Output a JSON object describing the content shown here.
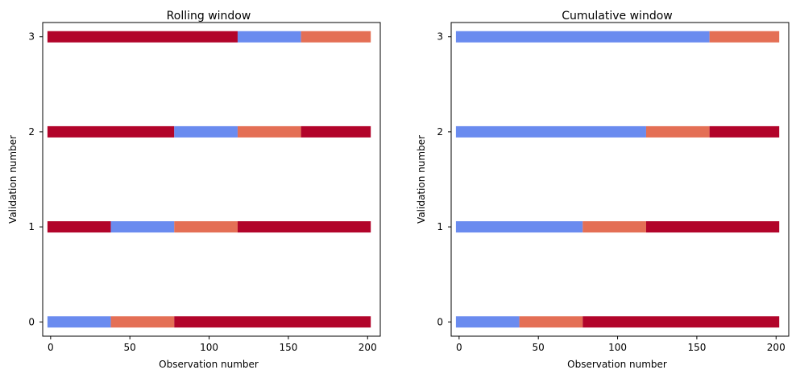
{
  "colors": {
    "train": "#6a8bef",
    "test": "#e46f55",
    "unused": "#b2042a"
  },
  "chart_data": [
    {
      "type": "bar",
      "orientation": "horizontal-segments",
      "title": "Rolling window",
      "xlabel": "Observation number",
      "ylabel": "Validation number",
      "xlim": [
        -5,
        208
      ],
      "ylim": [
        -0.15,
        3.15
      ],
      "xticks": [
        0,
        50,
        100,
        150,
        200
      ],
      "yticks": [
        0,
        1,
        2,
        3
      ],
      "rows": [
        {
          "y": 0,
          "segments": [
            {
              "start": -2,
              "end": 38,
              "kind": "train"
            },
            {
              "start": 38,
              "end": 78,
              "kind": "test"
            },
            {
              "start": 78,
              "end": 202,
              "kind": "unused"
            }
          ]
        },
        {
          "y": 1,
          "segments": [
            {
              "start": -2,
              "end": 38,
              "kind": "unused"
            },
            {
              "start": 38,
              "end": 78,
              "kind": "train"
            },
            {
              "start": 78,
              "end": 118,
              "kind": "test"
            },
            {
              "start": 118,
              "end": 202,
              "kind": "unused"
            }
          ]
        },
        {
          "y": 2,
          "segments": [
            {
              "start": -2,
              "end": 78,
              "kind": "unused"
            },
            {
              "start": 78,
              "end": 118,
              "kind": "train"
            },
            {
              "start": 118,
              "end": 158,
              "kind": "test"
            },
            {
              "start": 158,
              "end": 202,
              "kind": "unused"
            }
          ]
        },
        {
          "y": 3,
          "segments": [
            {
              "start": -2,
              "end": 118,
              "kind": "unused"
            },
            {
              "start": 118,
              "end": 158,
              "kind": "train"
            },
            {
              "start": 158,
              "end": 202,
              "kind": "test"
            }
          ]
        }
      ]
    },
    {
      "type": "bar",
      "orientation": "horizontal-segments",
      "title": "Cumulative window",
      "xlabel": "Observation number",
      "ylabel": "Validation number",
      "xlim": [
        -5,
        208
      ],
      "ylim": [
        -0.15,
        3.15
      ],
      "xticks": [
        0,
        50,
        100,
        150,
        200
      ],
      "yticks": [
        0,
        1,
        2,
        3
      ],
      "rows": [
        {
          "y": 0,
          "segments": [
            {
              "start": -2,
              "end": 38,
              "kind": "train"
            },
            {
              "start": 38,
              "end": 78,
              "kind": "test"
            },
            {
              "start": 78,
              "end": 202,
              "kind": "unused"
            }
          ]
        },
        {
          "y": 1,
          "segments": [
            {
              "start": -2,
              "end": 78,
              "kind": "train"
            },
            {
              "start": 78,
              "end": 118,
              "kind": "test"
            },
            {
              "start": 118,
              "end": 202,
              "kind": "unused"
            }
          ]
        },
        {
          "y": 2,
          "segments": [
            {
              "start": -2,
              "end": 118,
              "kind": "train"
            },
            {
              "start": 118,
              "end": 158,
              "kind": "test"
            },
            {
              "start": 158,
              "end": 202,
              "kind": "unused"
            }
          ]
        },
        {
          "y": 3,
          "segments": [
            {
              "start": -2,
              "end": 158,
              "kind": "train"
            },
            {
              "start": 158,
              "end": 202,
              "kind": "test"
            }
          ]
        }
      ]
    }
  ]
}
